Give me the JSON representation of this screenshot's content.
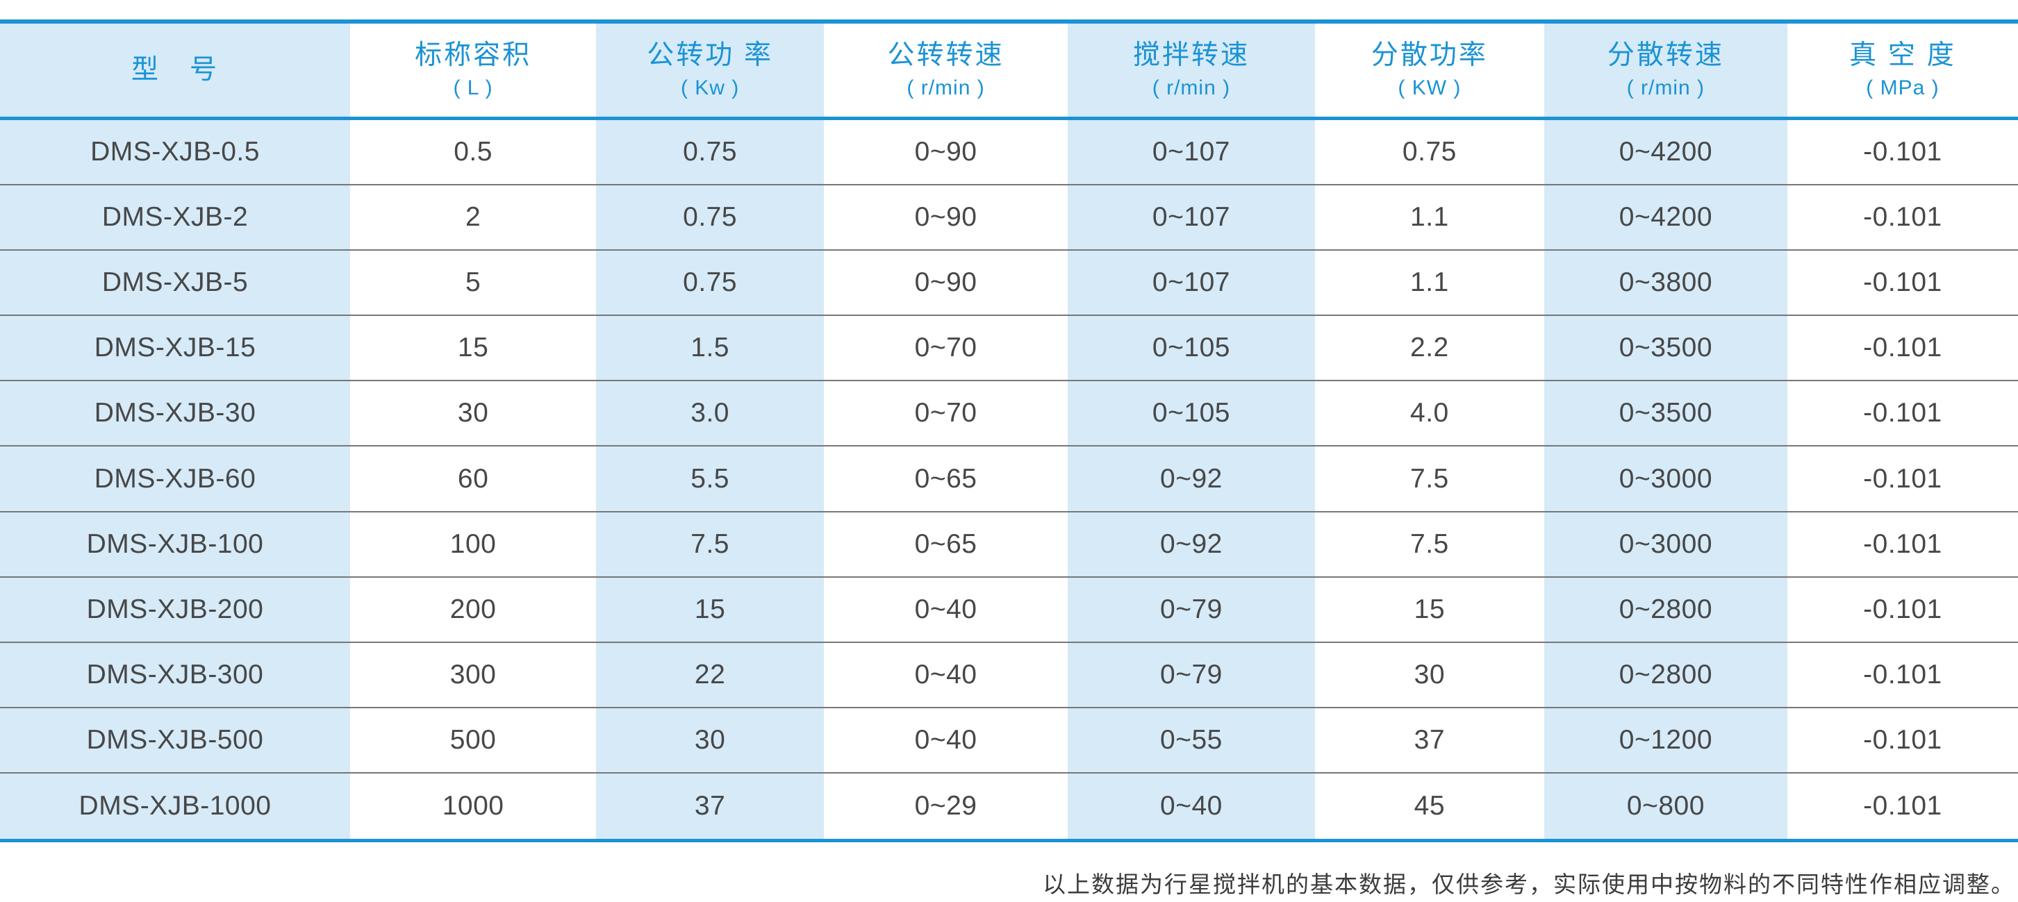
{
  "table": {
    "columns": [
      {
        "label": "型　号",
        "unit": ""
      },
      {
        "label": "标称容积",
        "unit": "( L )"
      },
      {
        "label": "公转功 率",
        "unit": "( Kw )"
      },
      {
        "label": "公转转速",
        "unit": "( r/min )"
      },
      {
        "label": "搅拌转速",
        "unit": "( r/min )"
      },
      {
        "label": "分散功率",
        "unit": "( KW )"
      },
      {
        "label": "分散转速",
        "unit": "( r/min )"
      },
      {
        "label": "真 空 度",
        "unit": "( MPa )"
      }
    ],
    "rows": [
      [
        "DMS-XJB-0.5",
        "0.5",
        "0.75",
        "0~90",
        "0~107",
        "0.75",
        "0~4200",
        "-0.101"
      ],
      [
        "DMS-XJB-2",
        "2",
        "0.75",
        "0~90",
        "0~107",
        "1.1",
        "0~4200",
        "-0.101"
      ],
      [
        "DMS-XJB-5",
        "5",
        "0.75",
        "0~90",
        "0~107",
        "1.1",
        "0~3800",
        "-0.101"
      ],
      [
        "DMS-XJB-15",
        "15",
        "1.5",
        "0~70",
        "0~105",
        "2.2",
        "0~3500",
        "-0.101"
      ],
      [
        "DMS-XJB-30",
        "30",
        "3.0",
        "0~70",
        "0~105",
        "4.0",
        "0~3500",
        "-0.101"
      ],
      [
        "DMS-XJB-60",
        "60",
        "5.5",
        "0~65",
        "0~92",
        "7.5",
        "0~3000",
        "-0.101"
      ],
      [
        "DMS-XJB-100",
        "100",
        "7.5",
        "0~65",
        "0~92",
        "7.5",
        "0~3000",
        "-0.101"
      ],
      [
        "DMS-XJB-200",
        "200",
        "15",
        "0~40",
        "0~79",
        "15",
        "0~2800",
        "-0.101"
      ],
      [
        "DMS-XJB-300",
        "300",
        "22",
        "0~40",
        "0~79",
        "30",
        "0~2800",
        "-0.101"
      ],
      [
        "DMS-XJB-500",
        "500",
        "30",
        "0~40",
        "0~55",
        "37",
        "0~1200",
        "-0.101"
      ],
      [
        "DMS-XJB-1000",
        "1000",
        "37",
        "0~29",
        "0~40",
        "45",
        "0~800",
        "-0.101"
      ]
    ],
    "shaded_column_indexes": [
      0,
      2,
      4,
      6
    ]
  },
  "footer": {
    "note": "以上数据为行星搅拌机的基本数据，仅供参考，实际使用中按物料的不同特性作相应调整。"
  },
  "colors": {
    "accent_blue": "#1b93d4",
    "column_shade_blue": "#d6eaf8",
    "body_text": "#474747",
    "row_separator": "#777777",
    "footnote_text": "#3c3c3c"
  }
}
